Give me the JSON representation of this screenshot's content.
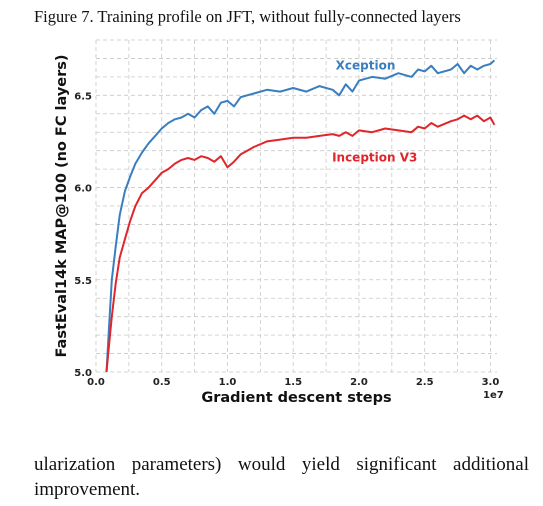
{
  "caption": "Figure 7. Training profile on JFT, without fully-connected layers",
  "body_text": "ularization parameters) would yield significant additional improvement.",
  "chart_data": {
    "type": "line",
    "title": "",
    "xlabel": "Gradient descent steps",
    "ylabel": "FastEval14k MAP@100 (no FC layers)",
    "x_scale_label": "1e7",
    "xlim": [
      0.0,
      3.05
    ],
    "ylim": [
      5.0,
      6.8
    ],
    "x_ticks": [
      0.0,
      0.5,
      1.0,
      1.5,
      2.0,
      2.5,
      3.0
    ],
    "x_tick_labels": [
      "0.0",
      "0.5",
      "1.0",
      "1.5",
      "2.0",
      "2.5",
      "3.0"
    ],
    "y_ticks": [
      5.0,
      5.5,
      6.0,
      6.5
    ],
    "y_tick_labels": [
      "5.0",
      "5.5",
      "6.0",
      "6.5"
    ],
    "grid": true,
    "series": [
      {
        "name": "Xception",
        "color": "#3a7ebf",
        "x": [
          0.08,
          0.1,
          0.12,
          0.15,
          0.18,
          0.22,
          0.26,
          0.3,
          0.35,
          0.4,
          0.45,
          0.5,
          0.55,
          0.6,
          0.65,
          0.7,
          0.75,
          0.8,
          0.85,
          0.9,
          0.95,
          1.0,
          1.05,
          1.1,
          1.15,
          1.2,
          1.3,
          1.4,
          1.5,
          1.6,
          1.7,
          1.8,
          1.85,
          1.9,
          1.95,
          2.0,
          2.1,
          2.2,
          2.3,
          2.4,
          2.45,
          2.5,
          2.55,
          2.6,
          2.7,
          2.75,
          2.8,
          2.85,
          2.9,
          2.95,
          3.0,
          3.03
        ],
        "y": [
          5.0,
          5.25,
          5.5,
          5.68,
          5.85,
          5.98,
          6.06,
          6.13,
          6.19,
          6.24,
          6.28,
          6.32,
          6.35,
          6.37,
          6.38,
          6.4,
          6.38,
          6.42,
          6.44,
          6.4,
          6.46,
          6.47,
          6.44,
          6.49,
          6.5,
          6.51,
          6.53,
          6.52,
          6.54,
          6.52,
          6.55,
          6.53,
          6.5,
          6.56,
          6.52,
          6.58,
          6.6,
          6.59,
          6.62,
          6.6,
          6.64,
          6.63,
          6.66,
          6.62,
          6.64,
          6.67,
          6.62,
          6.66,
          6.64,
          6.66,
          6.67,
          6.69
        ]
      },
      {
        "name": "Inception V3",
        "color": "#e0262b",
        "x": [
          0.08,
          0.1,
          0.12,
          0.15,
          0.18,
          0.22,
          0.26,
          0.3,
          0.35,
          0.4,
          0.45,
          0.5,
          0.55,
          0.6,
          0.65,
          0.7,
          0.75,
          0.8,
          0.85,
          0.9,
          0.95,
          1.0,
          1.05,
          1.1,
          1.15,
          1.2,
          1.3,
          1.4,
          1.5,
          1.6,
          1.7,
          1.8,
          1.85,
          1.9,
          1.95,
          2.0,
          2.1,
          2.2,
          2.3,
          2.4,
          2.45,
          2.5,
          2.55,
          2.6,
          2.7,
          2.75,
          2.8,
          2.85,
          2.9,
          2.95,
          3.0,
          3.03
        ],
        "y": [
          5.0,
          5.15,
          5.3,
          5.48,
          5.62,
          5.72,
          5.82,
          5.9,
          5.97,
          6.0,
          6.04,
          6.08,
          6.1,
          6.13,
          6.15,
          6.16,
          6.15,
          6.17,
          6.16,
          6.14,
          6.17,
          6.11,
          6.14,
          6.18,
          6.2,
          6.22,
          6.25,
          6.26,
          6.27,
          6.27,
          6.28,
          6.29,
          6.28,
          6.3,
          6.28,
          6.31,
          6.3,
          6.32,
          6.31,
          6.3,
          6.33,
          6.32,
          6.35,
          6.33,
          6.36,
          6.37,
          6.39,
          6.37,
          6.39,
          6.36,
          6.38,
          6.34
        ]
      }
    ],
    "annotations": [
      {
        "text": "Xception",
        "color": "#3a7ebf",
        "x": 2.05,
        "y": 6.64
      },
      {
        "text": "Inception V3",
        "color": "#e0262b",
        "x": 2.12,
        "y": 6.14
      }
    ]
  }
}
